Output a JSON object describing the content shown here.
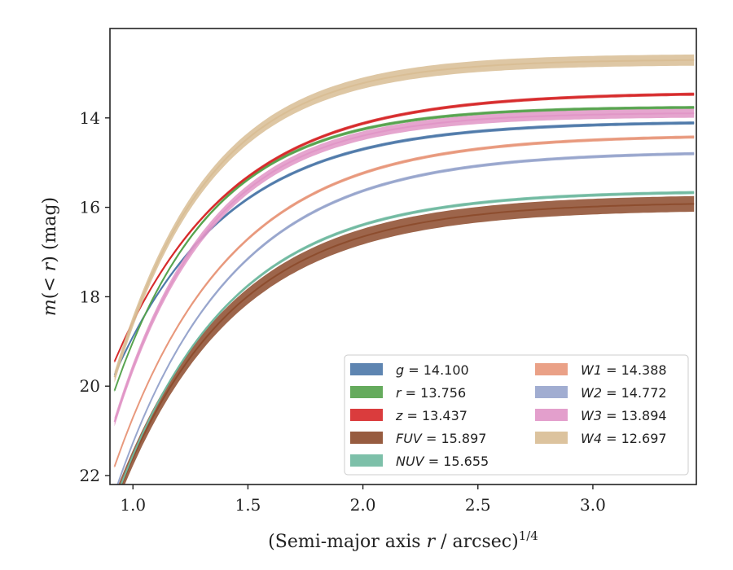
{
  "chart_data": {
    "type": "line",
    "xlabel": "(Semi-major axis r / arcsec)^{1/4}",
    "ylabel": "m(< r) (mag)",
    "xlim": [
      0.9,
      3.45
    ],
    "ylim": [
      22.2,
      12.0
    ],
    "y_inverted": true,
    "grid": false,
    "legend_position": "lower-right",
    "legend_columns": 2,
    "xticks": [
      1.0,
      1.5,
      2.0,
      2.5,
      3.0
    ],
    "xtick_labels": [
      "1.0",
      "1.5",
      "2.0",
      "2.5",
      "3.0"
    ],
    "yticks": [
      14,
      16,
      18,
      20,
      22
    ],
    "ytick_labels": [
      "14",
      "16",
      "18",
      "20",
      "22"
    ],
    "series": [
      {
        "name": "g = 14.100",
        "band": "g",
        "value": "14.100",
        "color": "#4c78a8",
        "band_width": 0.07,
        "curve": {
          "asym": 14.08,
          "m0": 19.75,
          "x0": 0.92,
          "k": 2.05,
          "xs": 0.92,
          "xe": 3.45
        }
      },
      {
        "name": "r = 13.756",
        "band": "r",
        "value": "13.756",
        "color": "#54a24b",
        "band_width": 0.07,
        "curve": {
          "asym": 13.75,
          "m0": 20.1,
          "x0": 0.92,
          "k": 2.35,
          "xs": 0.92,
          "xe": 3.45
        }
      },
      {
        "name": "z = 13.437",
        "band": "z",
        "value": "13.437",
        "color": "#d62728",
        "band_width": 0.07,
        "curve": {
          "asym": 13.43,
          "m0": 19.45,
          "x0": 0.92,
          "k": 2.0,
          "xs": 0.92,
          "xe": 3.45
        }
      },
      {
        "name": "FUV = 15.897",
        "band": "FUV",
        "value": "15.897",
        "color": "#8c4a2b",
        "band_width": 0.35,
        "curve": {
          "asym": 15.88,
          "m0": 22.6,
          "x0": 0.92,
          "k": 2.0,
          "xs": 0.92,
          "xe": 3.45
        }
      },
      {
        "name": "NUV = 15.655",
        "band": "NUV",
        "value": "15.655",
        "color": "#6fb9a0",
        "band_width": 0.07,
        "curve": {
          "asym": 15.63,
          "m0": 22.6,
          "x0": 0.92,
          "k": 2.05,
          "xs": 0.92,
          "xe": 3.45
        }
      },
      {
        "name": "W1 = 14.388",
        "band": "W1",
        "value": "14.388",
        "color": "#e8977a",
        "band_width": 0.07,
        "curve": {
          "asym": 14.38,
          "m0": 21.8,
          "x0": 0.92,
          "k": 2.0,
          "xs": 0.92,
          "xe": 3.45
        }
      },
      {
        "name": "W2 = 14.772",
        "band": "W2",
        "value": "14.772",
        "color": "#97a4cc",
        "band_width": 0.07,
        "curve": {
          "asym": 14.75,
          "m0": 22.4,
          "x0": 0.92,
          "k": 2.0,
          "xs": 0.92,
          "xe": 3.45
        }
      },
      {
        "name": "W3 = 13.894",
        "band": "W3",
        "value": "13.894",
        "color": "#e095c6",
        "band_width": 0.2,
        "curve": {
          "asym": 13.88,
          "m0": 20.8,
          "x0": 0.92,
          "k": 2.4,
          "xs": 0.92,
          "xe": 3.45
        }
      },
      {
        "name": "W4 = 12.697",
        "band": "W4",
        "value": "12.697",
        "color": "#d8bd94",
        "band_width": 0.25,
        "curve": {
          "asym": 12.69,
          "m0": 19.8,
          "x0": 0.92,
          "k": 2.4,
          "xs": 0.92,
          "xe": 3.45
        }
      }
    ],
    "legend": {
      "col1": [
        {
          "label_italic": "g",
          "label_rest": " = 14.100",
          "color": "#4c78a8"
        },
        {
          "label_italic": "r",
          "label_rest": " = 13.756",
          "color": "#54a24b"
        },
        {
          "label_italic": "z",
          "label_rest": " = 13.437",
          "color": "#d62728"
        },
        {
          "label_italic": "FUV",
          "label_rest": " = 15.897",
          "color": "#8c4a2b"
        },
        {
          "label_italic": "NUV",
          "label_rest": " = 15.655",
          "color": "#6fb9a0"
        }
      ],
      "col2": [
        {
          "label_italic": "W1",
          "label_rest": " = 14.388",
          "color": "#e8977a"
        },
        {
          "label_italic": "W2",
          "label_rest": " = 14.772",
          "color": "#97a4cc"
        },
        {
          "label_italic": "W3",
          "label_rest": " = 13.894",
          "color": "#e095c6"
        },
        {
          "label_italic": "W4",
          "label_rest": " = 12.697",
          "color": "#d8bd94"
        }
      ]
    }
  }
}
